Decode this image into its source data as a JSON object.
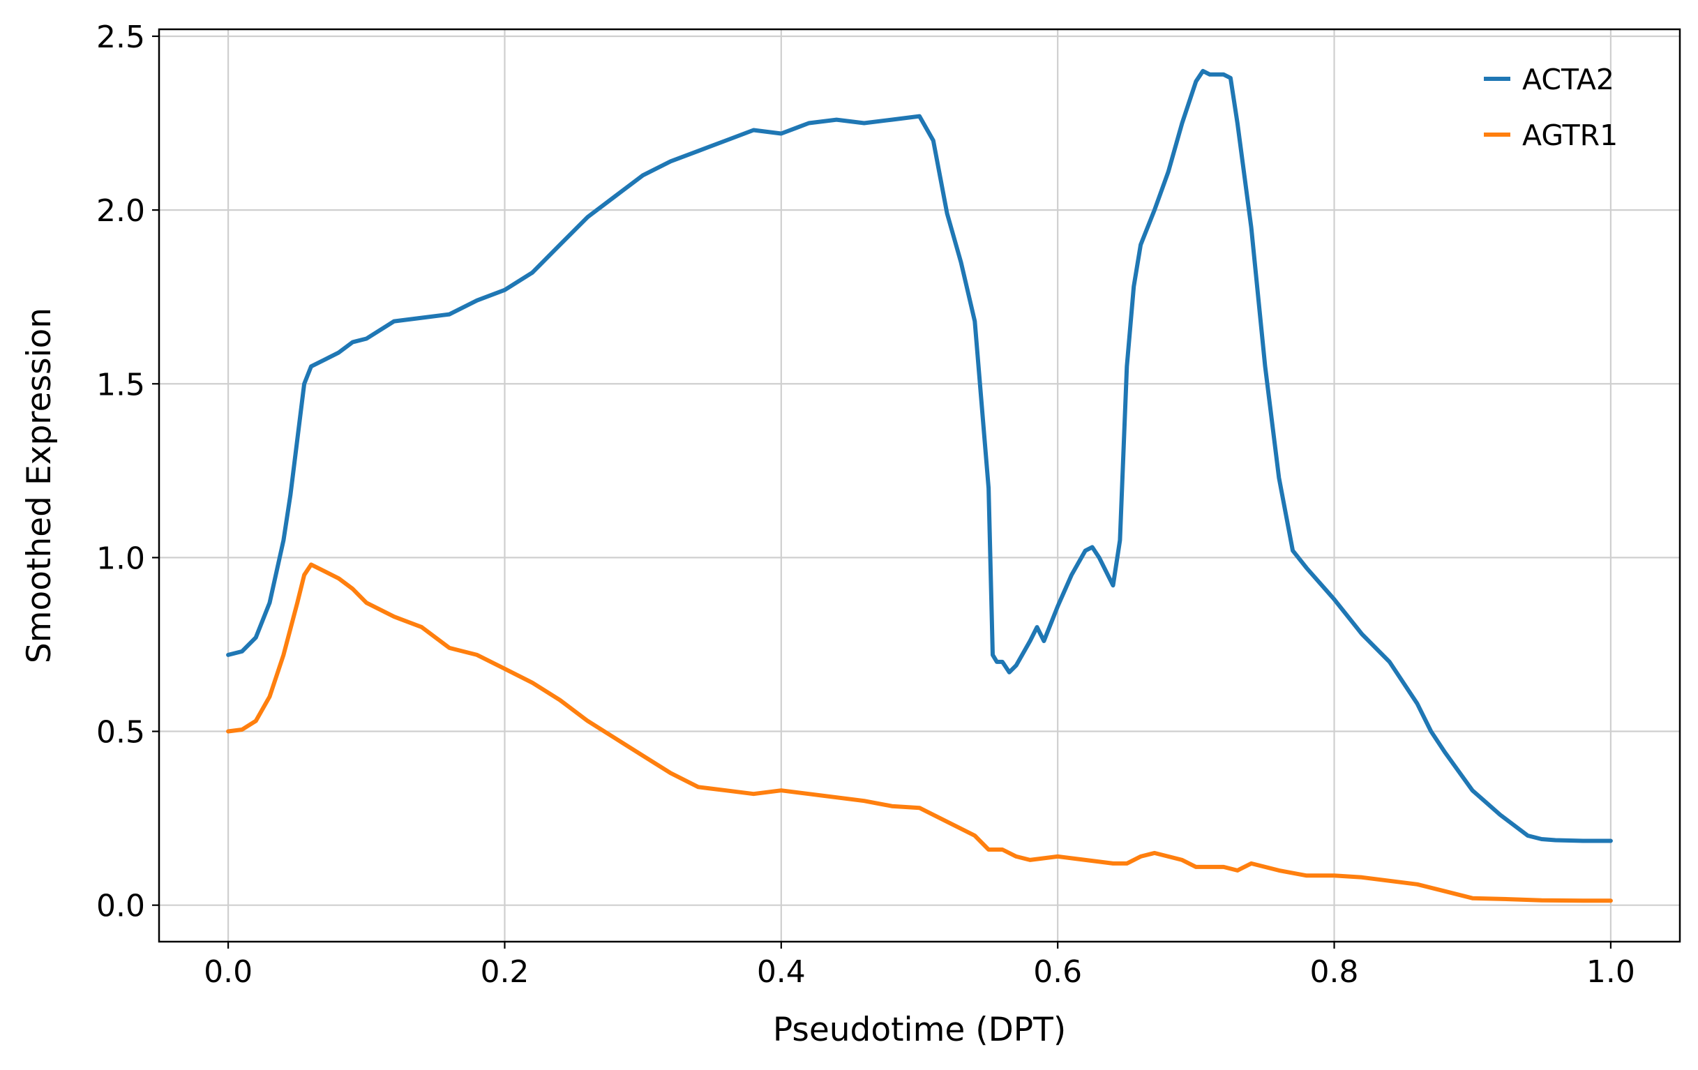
{
  "chart_data": {
    "type": "line",
    "xlabel": "Pseudotime (DPT)",
    "ylabel": "Smoothed Expression",
    "xlim": [
      -0.05,
      1.05
    ],
    "ylim": [
      -0.105,
      2.52
    ],
    "xticks": [
      0.0,
      0.2,
      0.4,
      0.6,
      0.8,
      1.0
    ],
    "xtick_labels": [
      "0.0",
      "0.2",
      "0.4",
      "0.6",
      "0.8",
      "1.0"
    ],
    "yticks": [
      0.0,
      0.5,
      1.0,
      1.5,
      2.0,
      2.5
    ],
    "ytick_labels": [
      "0.0",
      "0.5",
      "1.0",
      "1.5",
      "2.0",
      "2.5"
    ],
    "grid": true,
    "legend_position": "top-right",
    "series": [
      {
        "name": "ACTA2",
        "color": "#1f77b4",
        "x": [
          0.0,
          0.01,
          0.02,
          0.03,
          0.04,
          0.045,
          0.05,
          0.055,
          0.06,
          0.07,
          0.08,
          0.09,
          0.1,
          0.12,
          0.14,
          0.16,
          0.18,
          0.2,
          0.22,
          0.24,
          0.26,
          0.28,
          0.3,
          0.32,
          0.34,
          0.36,
          0.38,
          0.4,
          0.42,
          0.44,
          0.46,
          0.48,
          0.5,
          0.51,
          0.52,
          0.53,
          0.54,
          0.55,
          0.553,
          0.556,
          0.56,
          0.565,
          0.57,
          0.58,
          0.585,
          0.59,
          0.6,
          0.61,
          0.62,
          0.625,
          0.63,
          0.64,
          0.645,
          0.65,
          0.655,
          0.66,
          0.67,
          0.68,
          0.69,
          0.7,
          0.705,
          0.71,
          0.72,
          0.725,
          0.73,
          0.74,
          0.75,
          0.76,
          0.77,
          0.78,
          0.8,
          0.82,
          0.84,
          0.86,
          0.87,
          0.88,
          0.9,
          0.92,
          0.94,
          0.95,
          0.96,
          0.98,
          1.0
        ],
        "y": [
          0.72,
          0.73,
          0.77,
          0.87,
          1.05,
          1.18,
          1.34,
          1.5,
          1.55,
          1.57,
          1.59,
          1.62,
          1.63,
          1.68,
          1.69,
          1.7,
          1.74,
          1.77,
          1.82,
          1.9,
          1.98,
          2.04,
          2.1,
          2.14,
          2.17,
          2.2,
          2.23,
          2.22,
          2.25,
          2.26,
          2.25,
          2.26,
          2.27,
          2.2,
          1.99,
          1.85,
          1.68,
          1.2,
          0.72,
          0.7,
          0.7,
          0.67,
          0.69,
          0.76,
          0.8,
          0.76,
          0.86,
          0.95,
          1.02,
          1.03,
          1.0,
          0.92,
          1.05,
          1.55,
          1.78,
          1.9,
          2.0,
          2.11,
          2.25,
          2.37,
          2.4,
          2.39,
          2.39,
          2.38,
          2.25,
          1.95,
          1.55,
          1.23,
          1.02,
          0.97,
          0.88,
          0.78,
          0.7,
          0.58,
          0.5,
          0.44,
          0.33,
          0.26,
          0.2,
          0.19,
          0.187,
          0.185,
          0.185
        ]
      },
      {
        "name": "AGTR1",
        "color": "#ff7f0e",
        "x": [
          0.0,
          0.01,
          0.02,
          0.03,
          0.04,
          0.05,
          0.055,
          0.06,
          0.07,
          0.08,
          0.09,
          0.1,
          0.12,
          0.14,
          0.16,
          0.18,
          0.2,
          0.22,
          0.24,
          0.26,
          0.28,
          0.3,
          0.32,
          0.34,
          0.36,
          0.38,
          0.4,
          0.42,
          0.44,
          0.46,
          0.48,
          0.5,
          0.52,
          0.54,
          0.55,
          0.56,
          0.57,
          0.58,
          0.6,
          0.62,
          0.64,
          0.65,
          0.66,
          0.67,
          0.68,
          0.69,
          0.7,
          0.72,
          0.73,
          0.74,
          0.76,
          0.78,
          0.8,
          0.82,
          0.84,
          0.86,
          0.88,
          0.9,
          0.92,
          0.95,
          0.98,
          1.0
        ],
        "y": [
          0.5,
          0.505,
          0.53,
          0.6,
          0.72,
          0.87,
          0.95,
          0.98,
          0.96,
          0.94,
          0.91,
          0.87,
          0.83,
          0.8,
          0.74,
          0.72,
          0.68,
          0.64,
          0.59,
          0.53,
          0.48,
          0.43,
          0.38,
          0.34,
          0.33,
          0.32,
          0.33,
          0.32,
          0.31,
          0.3,
          0.285,
          0.28,
          0.24,
          0.2,
          0.16,
          0.16,
          0.14,
          0.13,
          0.14,
          0.13,
          0.12,
          0.12,
          0.14,
          0.15,
          0.14,
          0.13,
          0.11,
          0.11,
          0.1,
          0.12,
          0.1,
          0.085,
          0.085,
          0.08,
          0.07,
          0.06,
          0.04,
          0.02,
          0.018,
          0.014,
          0.013,
          0.013
        ]
      }
    ]
  }
}
